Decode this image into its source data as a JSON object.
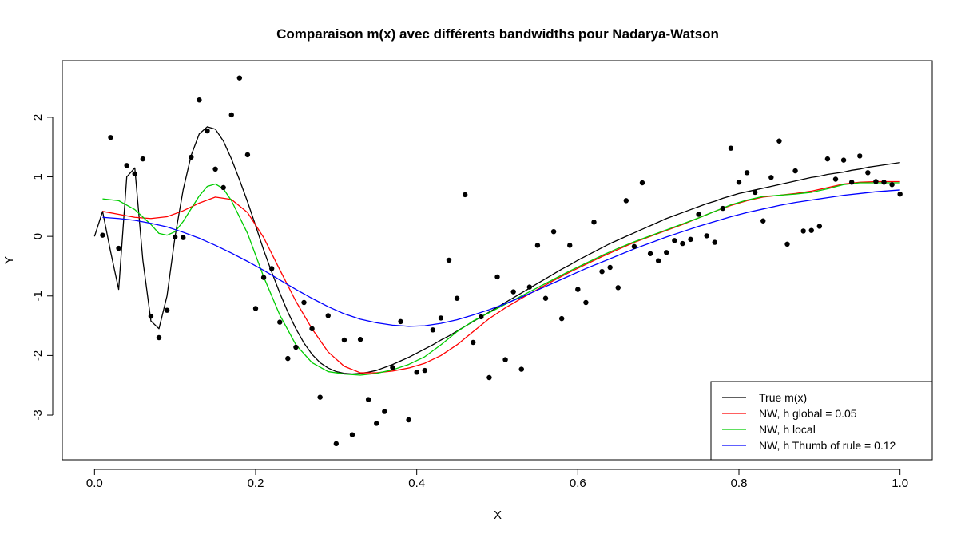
{
  "chart_data": {
    "type": "scatter",
    "title": "Comparaison m(x) avec différents bandwidths pour Nadarya-Watson",
    "xlabel": "X",
    "ylabel": "Y",
    "xlim": [
      -0.04,
      1.04
    ],
    "ylim": [
      -3.75,
      2.95
    ],
    "x_ticks": [
      0.0,
      0.2,
      0.4,
      0.6,
      0.8,
      1.0
    ],
    "x_tick_labels": [
      "0.0",
      "0.2",
      "0.4",
      "0.6",
      "0.8",
      "1.0"
    ],
    "y_ticks": [
      -3,
      -2,
      -1,
      0,
      1,
      2
    ],
    "y_tick_labels": [
      "-3",
      "-2",
      "-1",
      "0",
      "1",
      "2"
    ],
    "grid": false,
    "legend_position": "bottom-right",
    "points": [
      [
        0.01,
        0.02
      ],
      [
        0.02,
        1.66
      ],
      [
        0.03,
        -0.2
      ],
      [
        0.04,
        1.19
      ],
      [
        0.05,
        1.05
      ],
      [
        0.06,
        1.3
      ],
      [
        0.07,
        -1.34
      ],
      [
        0.08,
        -1.7
      ],
      [
        0.09,
        -1.24
      ],
      [
        0.1,
        -0.01
      ],
      [
        0.11,
        -0.02
      ],
      [
        0.12,
        1.33
      ],
      [
        0.13,
        2.29
      ],
      [
        0.14,
        1.77
      ],
      [
        0.15,
        1.13
      ],
      [
        0.16,
        0.82
      ],
      [
        0.17,
        2.04
      ],
      [
        0.18,
        2.66
      ],
      [
        0.19,
        1.37
      ],
      [
        0.2,
        -1.21
      ],
      [
        0.21,
        -0.69
      ],
      [
        0.22,
        -0.54
      ],
      [
        0.23,
        -1.44
      ],
      [
        0.24,
        -2.05
      ],
      [
        0.25,
        -1.86
      ],
      [
        0.26,
        -1.11
      ],
      [
        0.27,
        -1.55
      ],
      [
        0.28,
        -2.7
      ],
      [
        0.29,
        -1.33
      ],
      [
        0.3,
        -3.48
      ],
      [
        0.31,
        -1.74
      ],
      [
        0.32,
        -3.33
      ],
      [
        0.33,
        -1.73
      ],
      [
        0.34,
        -2.74
      ],
      [
        0.35,
        -3.14
      ],
      [
        0.36,
        -2.94
      ],
      [
        0.37,
        -2.2
      ],
      [
        0.38,
        -1.43
      ],
      [
        0.39,
        -3.08
      ],
      [
        0.4,
        -2.28
      ],
      [
        0.41,
        -2.25
      ],
      [
        0.42,
        -1.57
      ],
      [
        0.43,
        -1.37
      ],
      [
        0.44,
        -0.4
      ],
      [
        0.45,
        -1.04
      ],
      [
        0.46,
        0.7
      ],
      [
        0.47,
        -1.78
      ],
      [
        0.48,
        -1.35
      ],
      [
        0.49,
        -2.37
      ],
      [
        0.5,
        -0.68
      ],
      [
        0.51,
        -2.07
      ],
      [
        0.52,
        -0.93
      ],
      [
        0.53,
        -2.23
      ],
      [
        0.54,
        -0.85
      ],
      [
        0.55,
        -0.15
      ],
      [
        0.56,
        -1.04
      ],
      [
        0.57,
        0.08
      ],
      [
        0.58,
        -1.38
      ],
      [
        0.59,
        -0.15
      ],
      [
        0.6,
        -0.89
      ],
      [
        0.61,
        -1.11
      ],
      [
        0.62,
        0.24
      ],
      [
        0.63,
        -0.59
      ],
      [
        0.64,
        -0.52
      ],
      [
        0.65,
        -0.86
      ],
      [
        0.66,
        0.6
      ],
      [
        0.67,
        -0.17
      ],
      [
        0.68,
        0.9
      ],
      [
        0.69,
        -0.29
      ],
      [
        0.7,
        -0.41
      ],
      [
        0.71,
        -0.27
      ],
      [
        0.72,
        -0.07
      ],
      [
        0.73,
        -0.12
      ],
      [
        0.74,
        -0.05
      ],
      [
        0.75,
        0.37
      ],
      [
        0.76,
        0.01
      ],
      [
        0.77,
        -0.1
      ],
      [
        0.78,
        0.47
      ],
      [
        0.79,
        1.48
      ],
      [
        0.8,
        0.91
      ],
      [
        0.81,
        1.07
      ],
      [
        0.82,
        0.74
      ],
      [
        0.83,
        0.26
      ],
      [
        0.84,
        0.99
      ],
      [
        0.85,
        1.6
      ],
      [
        0.86,
        -0.13
      ],
      [
        0.87,
        1.1
      ],
      [
        0.88,
        0.09
      ],
      [
        0.89,
        0.1
      ],
      [
        0.9,
        0.17
      ],
      [
        0.91,
        1.3
      ],
      [
        0.92,
        0.96
      ],
      [
        0.93,
        1.28
      ],
      [
        0.94,
        0.91
      ],
      [
        0.95,
        1.35
      ],
      [
        0.96,
        1.07
      ],
      [
        0.97,
        0.92
      ],
      [
        0.98,
        0.91
      ],
      [
        0.99,
        0.87
      ],
      [
        1.0,
        0.71
      ]
    ],
    "series": [
      {
        "name": "True m(x)",
        "color": "#000000",
        "x": [
          0.0,
          0.01,
          0.02,
          0.03,
          0.04,
          0.05,
          0.06,
          0.07,
          0.08,
          0.09,
          0.1,
          0.11,
          0.12,
          0.13,
          0.14,
          0.15,
          0.16,
          0.17,
          0.18,
          0.19,
          0.2,
          0.21,
          0.22,
          0.23,
          0.24,
          0.25,
          0.26,
          0.27,
          0.28,
          0.29,
          0.3,
          0.31,
          0.32,
          0.33,
          0.34,
          0.35,
          0.36,
          0.37,
          0.38,
          0.39,
          0.4,
          0.41,
          0.42,
          0.43,
          0.44,
          0.45,
          0.46,
          0.47,
          0.48,
          0.49,
          0.5,
          0.51,
          0.52,
          0.53,
          0.54,
          0.55,
          0.56,
          0.57,
          0.58,
          0.59,
          0.6,
          0.61,
          0.62,
          0.63,
          0.64,
          0.65,
          0.66,
          0.67,
          0.68,
          0.69,
          0.7,
          0.71,
          0.72,
          0.73,
          0.74,
          0.75,
          0.76,
          0.77,
          0.78,
          0.79,
          0.8,
          0.81,
          0.82,
          0.83,
          0.84,
          0.85,
          0.86,
          0.87,
          0.88,
          0.89,
          0.9,
          0.91,
          0.92,
          0.93,
          0.94,
          0.95,
          0.96,
          0.97,
          0.98,
          0.99,
          1.0
        ],
        "y": [
          0.0,
          0.42,
          -0.26,
          -0.89,
          1.0,
          1.15,
          -0.4,
          -1.42,
          -1.55,
          -1.0,
          0.0,
          0.78,
          1.36,
          1.72,
          1.84,
          1.8,
          1.6,
          1.3,
          0.95,
          0.58,
          0.18,
          -0.23,
          -0.6,
          -0.95,
          -1.27,
          -1.55,
          -1.79,
          -1.98,
          -2.12,
          -2.21,
          -2.27,
          -2.3,
          -2.31,
          -2.3,
          -2.28,
          -2.25,
          -2.2,
          -2.15,
          -2.09,
          -2.03,
          -1.96,
          -1.89,
          -1.82,
          -1.74,
          -1.67,
          -1.59,
          -1.51,
          -1.43,
          -1.35,
          -1.27,
          -1.19,
          -1.11,
          -1.03,
          -0.95,
          -0.87,
          -0.79,
          -0.71,
          -0.63,
          -0.55,
          -0.48,
          -0.4,
          -0.33,
          -0.26,
          -0.19,
          -0.12,
          -0.06,
          0.0,
          0.06,
          0.12,
          0.18,
          0.24,
          0.3,
          0.35,
          0.4,
          0.45,
          0.5,
          0.55,
          0.59,
          0.64,
          0.68,
          0.72,
          0.75,
          0.78,
          0.81,
          0.84,
          0.87,
          0.9,
          0.93,
          0.96,
          0.99,
          1.01,
          1.04,
          1.06,
          1.08,
          1.11,
          1.13,
          1.16,
          1.18,
          1.2,
          1.22,
          1.24
        ]
      },
      {
        "name": "NW, h global = 0.05",
        "color": "#ff0000",
        "x": [
          0.01,
          0.03,
          0.05,
          0.07,
          0.09,
          0.11,
          0.13,
          0.15,
          0.17,
          0.19,
          0.21,
          0.23,
          0.25,
          0.27,
          0.29,
          0.31,
          0.33,
          0.35,
          0.37,
          0.39,
          0.41,
          0.43,
          0.45,
          0.47,
          0.49,
          0.51,
          0.53,
          0.55,
          0.57,
          0.59,
          0.61,
          0.63,
          0.65,
          0.67,
          0.69,
          0.71,
          0.73,
          0.75,
          0.77,
          0.79,
          0.81,
          0.83,
          0.85,
          0.87,
          0.89,
          0.91,
          0.93,
          0.95,
          0.97,
          0.99,
          1.0
        ],
        "y": [
          0.42,
          0.37,
          0.32,
          0.3,
          0.33,
          0.43,
          0.56,
          0.66,
          0.62,
          0.4,
          -0.02,
          -0.56,
          -1.09,
          -1.55,
          -1.94,
          -2.18,
          -2.29,
          -2.29,
          -2.26,
          -2.21,
          -2.13,
          -2.0,
          -1.82,
          -1.6,
          -1.38,
          -1.2,
          -1.04,
          -0.89,
          -0.74,
          -0.6,
          -0.47,
          -0.34,
          -0.22,
          -0.1,
          0.0,
          0.1,
          0.2,
          0.31,
          0.42,
          0.52,
          0.6,
          0.66,
          0.69,
          0.72,
          0.76,
          0.82,
          0.88,
          0.91,
          0.92,
          0.92,
          0.92
        ]
      },
      {
        "name": "NW, h local",
        "color": "#00cc00",
        "x": [
          0.01,
          0.03,
          0.05,
          0.07,
          0.08,
          0.09,
          0.1,
          0.11,
          0.13,
          0.14,
          0.15,
          0.16,
          0.17,
          0.19,
          0.21,
          0.23,
          0.25,
          0.27,
          0.29,
          0.31,
          0.33,
          0.35,
          0.37,
          0.39,
          0.41,
          0.43,
          0.45,
          0.47,
          0.49,
          0.51,
          0.53,
          0.55,
          0.57,
          0.59,
          0.61,
          0.63,
          0.65,
          0.67,
          0.69,
          0.71,
          0.73,
          0.75,
          0.77,
          0.79,
          0.81,
          0.83,
          0.85,
          0.87,
          0.89,
          0.91,
          0.93,
          0.95,
          0.97,
          0.99,
          1.0
        ],
        "y": [
          0.63,
          0.6,
          0.45,
          0.2,
          0.05,
          0.02,
          0.08,
          0.25,
          0.68,
          0.84,
          0.88,
          0.8,
          0.6,
          0.05,
          -0.68,
          -1.32,
          -1.82,
          -2.12,
          -2.27,
          -2.31,
          -2.33,
          -2.3,
          -2.24,
          -2.15,
          -2.02,
          -1.82,
          -1.6,
          -1.42,
          -1.28,
          -1.14,
          -1.0,
          -0.86,
          -0.72,
          -0.58,
          -0.45,
          -0.32,
          -0.2,
          -0.09,
          0.01,
          0.11,
          0.21,
          0.31,
          0.42,
          0.53,
          0.61,
          0.67,
          0.69,
          0.71,
          0.74,
          0.8,
          0.87,
          0.9,
          0.9,
          0.9,
          0.9
        ]
      },
      {
        "name": "NW, h Thumb of rule = 0.12",
        "color": "#0000ff",
        "x": [
          0.01,
          0.03,
          0.05,
          0.07,
          0.09,
          0.11,
          0.13,
          0.15,
          0.17,
          0.19,
          0.21,
          0.23,
          0.25,
          0.27,
          0.29,
          0.31,
          0.33,
          0.35,
          0.37,
          0.39,
          0.41,
          0.43,
          0.45,
          0.47,
          0.49,
          0.51,
          0.53,
          0.55,
          0.57,
          0.59,
          0.61,
          0.63,
          0.65,
          0.67,
          0.69,
          0.71,
          0.73,
          0.75,
          0.77,
          0.79,
          0.81,
          0.83,
          0.85,
          0.87,
          0.89,
          0.91,
          0.93,
          0.95,
          0.97,
          0.99,
          1.0
        ],
        "y": [
          0.32,
          0.3,
          0.27,
          0.22,
          0.16,
          0.07,
          -0.03,
          -0.15,
          -0.28,
          -0.42,
          -0.57,
          -0.73,
          -0.89,
          -1.04,
          -1.18,
          -1.3,
          -1.39,
          -1.45,
          -1.49,
          -1.51,
          -1.5,
          -1.46,
          -1.4,
          -1.32,
          -1.23,
          -1.13,
          -1.02,
          -0.9,
          -0.78,
          -0.66,
          -0.54,
          -0.43,
          -0.32,
          -0.21,
          -0.11,
          -0.01,
          0.08,
          0.17,
          0.25,
          0.33,
          0.4,
          0.46,
          0.52,
          0.57,
          0.61,
          0.65,
          0.69,
          0.72,
          0.75,
          0.77,
          0.78
        ]
      }
    ]
  }
}
